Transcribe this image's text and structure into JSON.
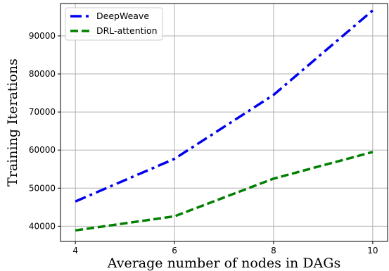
{
  "chart_data": {
    "type": "line",
    "title": "",
    "xlabel": "Average number of nodes in DAGs",
    "ylabel": "Training Iterations",
    "x": [
      4,
      6,
      8,
      10
    ],
    "xlim": [
      3.7,
      10.3
    ],
    "ylim": [
      36000,
      98500
    ],
    "xticks": [
      4,
      6,
      8,
      10
    ],
    "yticks": [
      40000,
      50000,
      60000,
      70000,
      80000,
      90000
    ],
    "grid": true,
    "legend_position": "top-left",
    "series": [
      {
        "name": "DeepWeave",
        "values": [
          46500,
          57700,
          74500,
          96700
        ],
        "color": "#0000ee",
        "style": "dashdot"
      },
      {
        "name": "DRL-attention",
        "values": [
          38900,
          42600,
          52500,
          59500
        ],
        "color": "#008000",
        "style": "dashed"
      }
    ]
  }
}
